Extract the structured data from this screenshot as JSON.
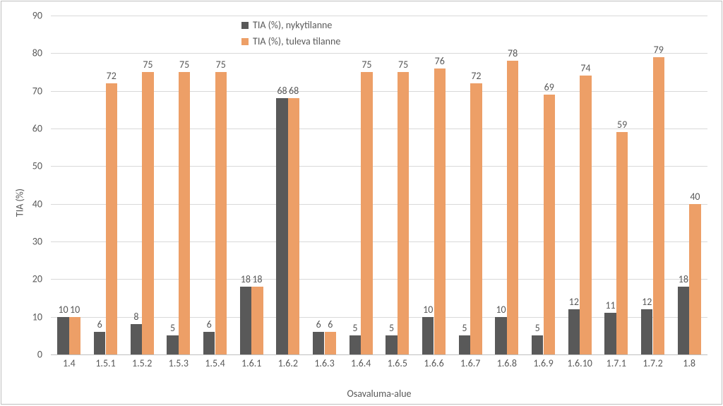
{
  "chart": {
    "type": "bar",
    "ylabel": "TIA (%)",
    "xlabel": "Osavaluma-alue",
    "ylim": [
      0,
      90
    ],
    "ytick_step": 10,
    "background_color": "#ffffff",
    "grid_color": "#d9d9d9",
    "border_color": "#bfbfbf",
    "label_color": "#595959",
    "label_fontsize": 14,
    "categories": [
      "1.4",
      "1.5.1",
      "1.5.2",
      "1.5.3",
      "1.5.4",
      "1.6.1",
      "1.6.2",
      "1.6.3",
      "1.6.4",
      "1.6.5",
      "1.6.6",
      "1.6.7",
      "1.6.8",
      "1.6.9",
      "1.6.10",
      "1.7.1",
      "1.7.2",
      "1.8"
    ],
    "series": [
      {
        "name": "TIA (%), nykytilanne",
        "color": "#595959",
        "values": [
          10,
          6,
          8,
          5,
          6,
          18,
          68,
          6,
          5,
          5,
          10,
          5,
          10,
          5,
          12,
          11,
          12,
          18
        ]
      },
      {
        "name": "TIA (%), tuleva tilanne",
        "color": "#ed9f67",
        "values": [
          10,
          72,
          75,
          75,
          75,
          18,
          68,
          6,
          75,
          75,
          76,
          72,
          78,
          69,
          74,
          59,
          79,
          40
        ]
      }
    ]
  }
}
